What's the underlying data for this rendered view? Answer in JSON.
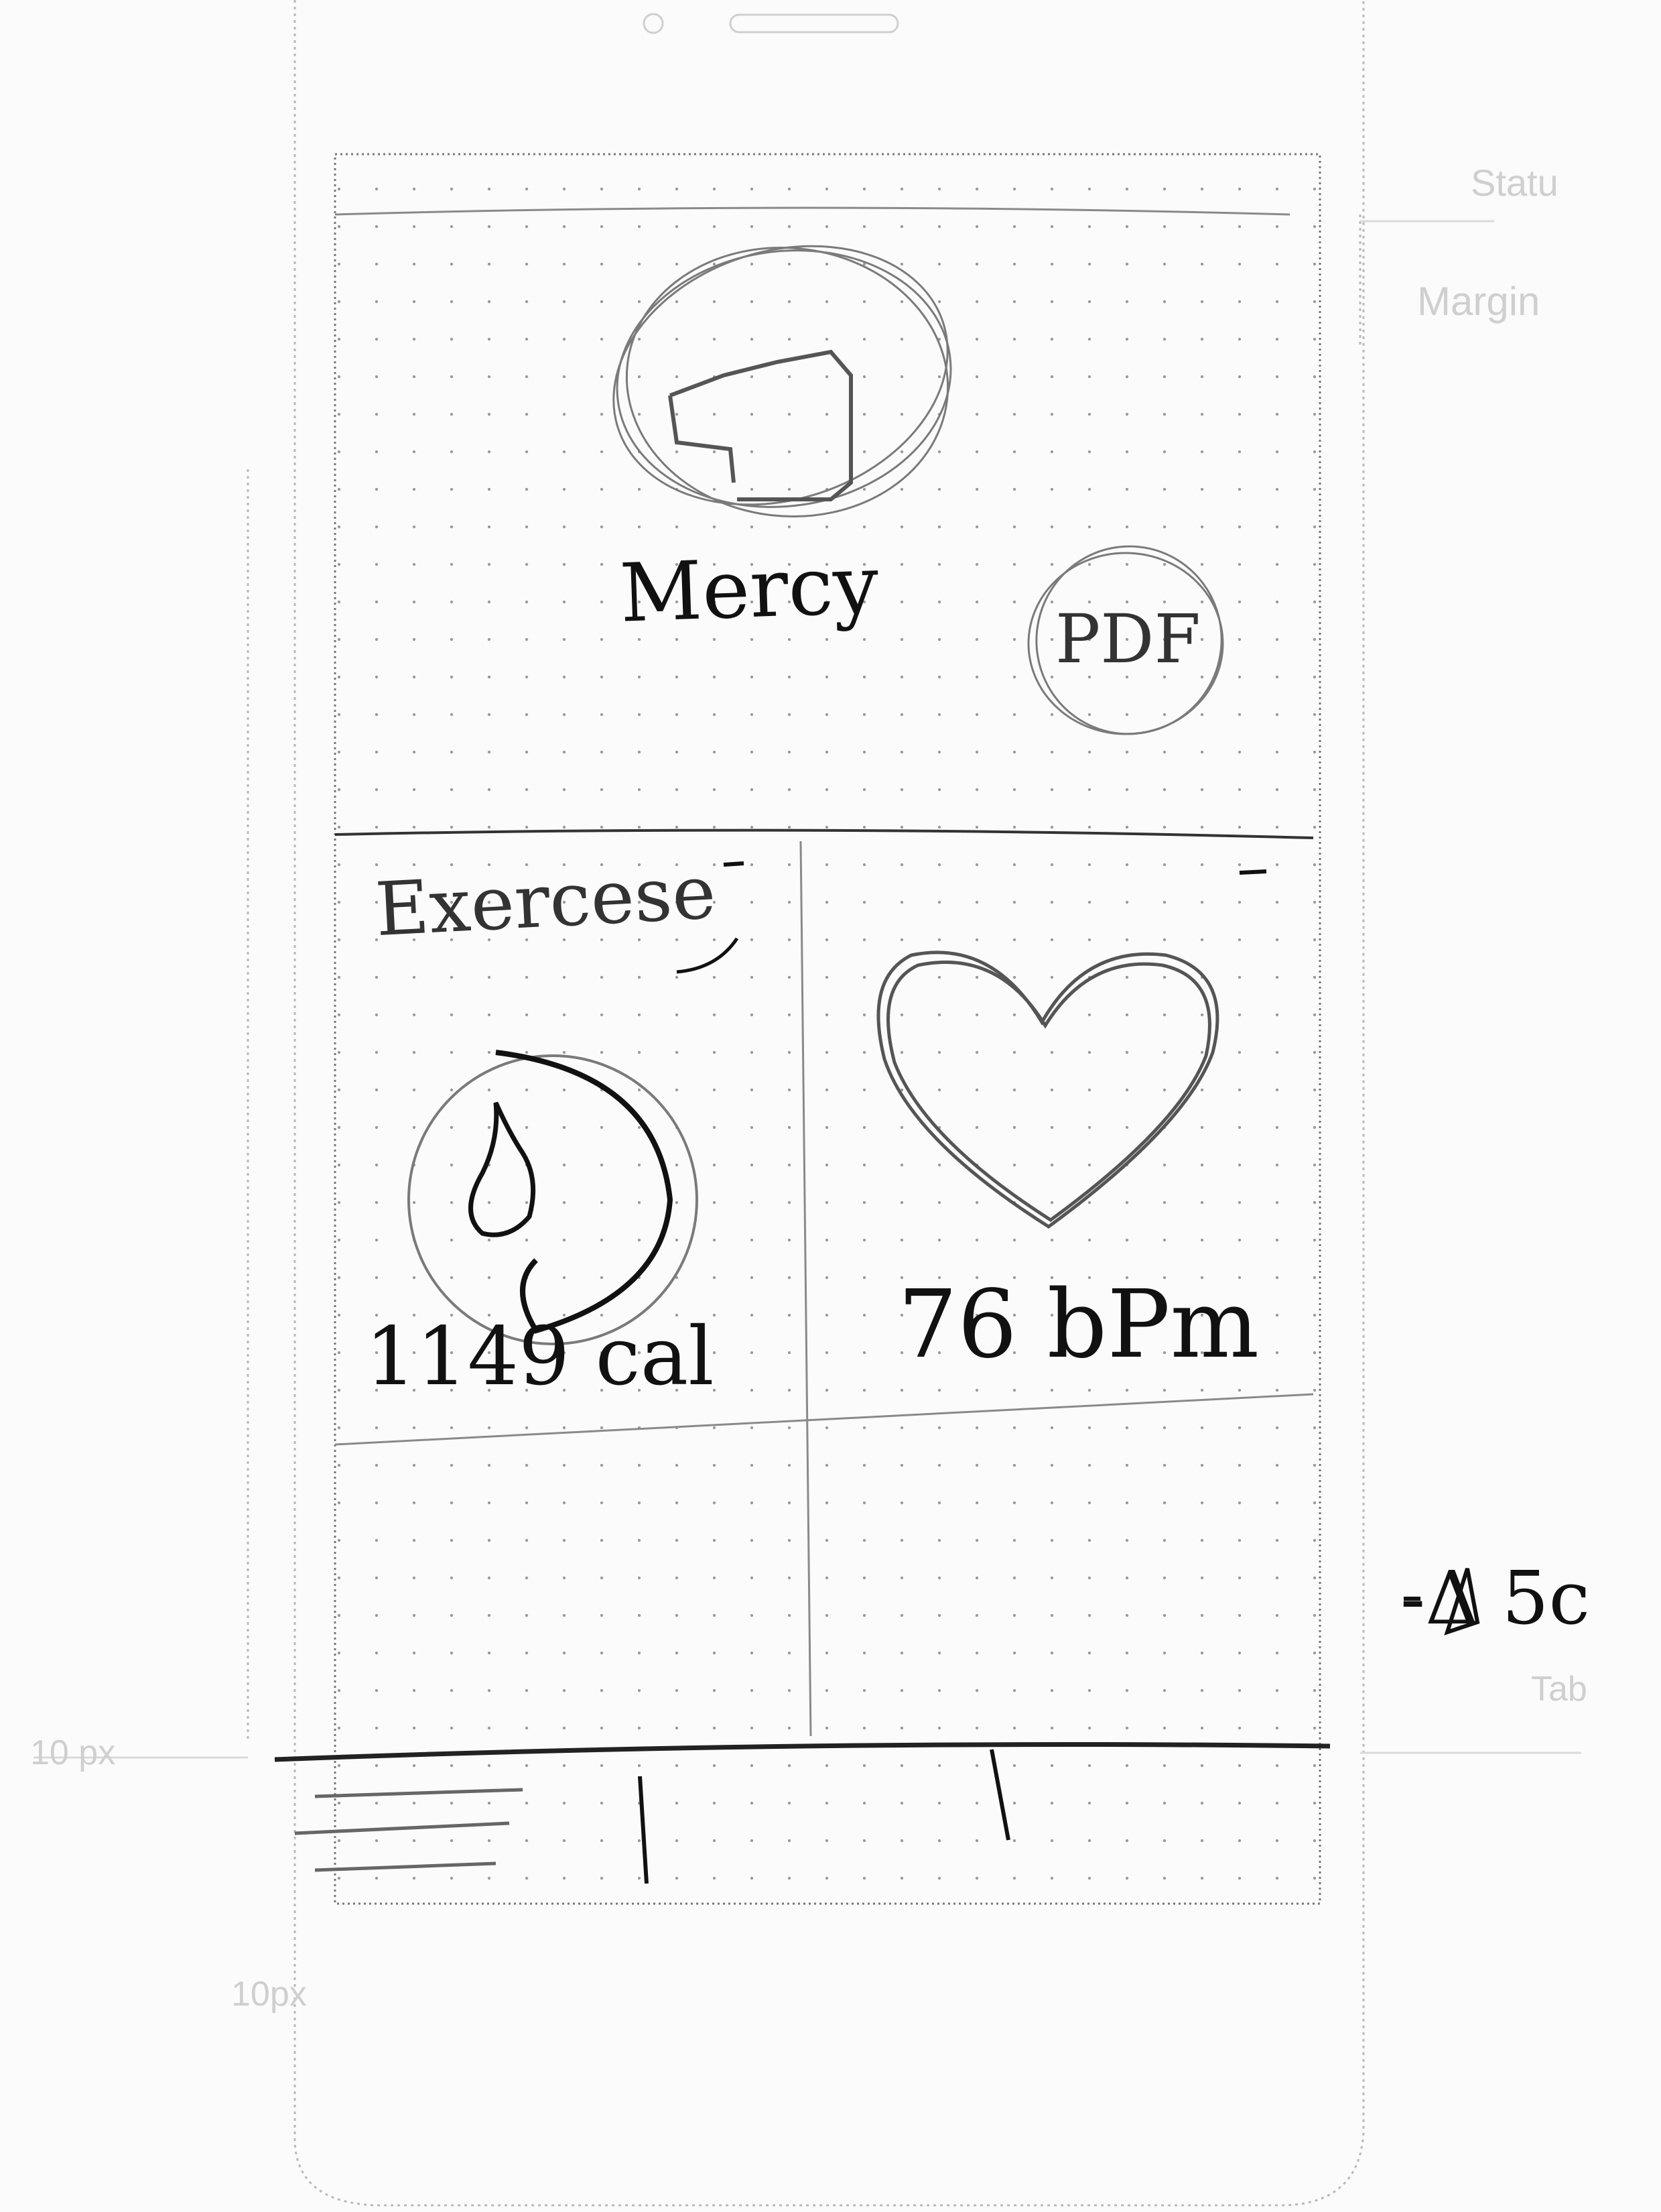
{
  "header": {
    "user_name": "Mercy",
    "pdf_button_label": "PDF"
  },
  "exercise_card": {
    "title": "Exercese",
    "calories": "1149 cal"
  },
  "heart_card": {
    "bpm": "76 bPm"
  },
  "side_notes": {
    "status_label": "Statu",
    "margin_label": "Margin",
    "annotation": "-Δ 5c",
    "tab_label": "Tab",
    "left_dim_label": "10 px",
    "bottom_dim_label": "10px"
  },
  "colors": {
    "ink": "#111111",
    "pencil": "#6e6e6e",
    "faint": "#cfcfcf",
    "paper": "#fbfbfb"
  }
}
